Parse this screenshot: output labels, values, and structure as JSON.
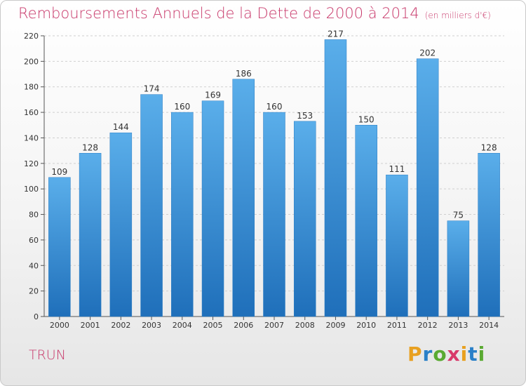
{
  "title": "Remboursements Annuels de la Dette de 2000 à 2014",
  "unit": "(en milliers d'€)",
  "location": "TRUN",
  "logo": {
    "letters": [
      "P",
      "r",
      "o",
      "x",
      "i",
      "t",
      "i"
    ],
    "colors": [
      "#e8a020",
      "#2a80c8",
      "#5aaa32",
      "#d83a6a",
      "#e8a020",
      "#2a80c8",
      "#5aaa32"
    ]
  },
  "colors": {
    "bar": "#3a8fd8",
    "bar_dark": "#1f6fba",
    "title": "#c8386a"
  },
  "chart_data": {
    "type": "bar",
    "categories": [
      "2000",
      "2001",
      "2002",
      "2003",
      "2004",
      "2005",
      "2006",
      "2007",
      "2008",
      "2009",
      "2010",
      "2011",
      "2012",
      "2013",
      "2014"
    ],
    "values": [
      109,
      128,
      144,
      174,
      160,
      169,
      186,
      160,
      153,
      217,
      150,
      111,
      202,
      75,
      128
    ],
    "yticks": [
      0,
      20,
      40,
      60,
      80,
      100,
      120,
      140,
      160,
      180,
      200,
      220
    ],
    "ylim": [
      0,
      220
    ],
    "grid": true,
    "xlabel": "",
    "ylabel": ""
  }
}
